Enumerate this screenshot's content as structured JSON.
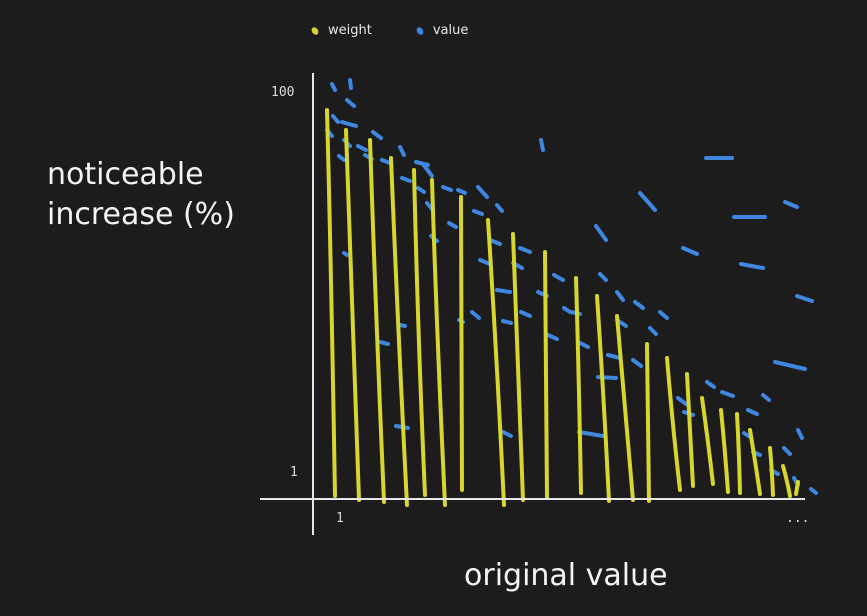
{
  "legend": [
    {
      "label": "weight",
      "color": "#d6d62e"
    },
    {
      "label": "value",
      "color": "#3f86e0"
    }
  ],
  "colors": {
    "weight": "#d6d62e",
    "value": "#3f86e0",
    "axis": "#e6e6e6",
    "background": "#1c1c1c"
  },
  "chart_data": {
    "type": "line",
    "xlabel": "original value",
    "ylabel_lines": [
      "noticeable",
      "increase (%)"
    ],
    "y_tick_labels": [
      "100",
      "1"
    ],
    "x_tick_labels": [
      "1",
      "..."
    ],
    "legend_position": "top",
    "grid": false,
    "weight_strokes": [
      [
        [
          327,
          110
        ],
        [
          331,
          260
        ],
        [
          335,
          496
        ]
      ],
      [
        [
          346,
          130
        ],
        [
          352,
          300
        ],
        [
          359,
          500
        ]
      ],
      [
        [
          370,
          140
        ],
        [
          376,
          320
        ],
        [
          384,
          502
        ]
      ],
      [
        [
          391,
          158
        ],
        [
          398,
          330
        ],
        [
          407,
          505
        ]
      ],
      [
        [
          414,
          170
        ],
        [
          418,
          340
        ],
        [
          425,
          495
        ]
      ],
      [
        [
          432,
          180
        ],
        [
          437,
          340
        ],
        [
          445,
          505
        ]
      ],
      [
        [
          461,
          197
        ],
        [
          462,
          330
        ],
        [
          462,
          490
        ]
      ],
      [
        [
          488,
          220
        ],
        [
          497,
          360
        ],
        [
          504,
          505
        ]
      ],
      [
        [
          513,
          234
        ],
        [
          518,
          360
        ],
        [
          523,
          500
        ]
      ],
      [
        [
          545,
          252
        ],
        [
          546,
          380
        ],
        [
          547,
          498
        ]
      ],
      [
        [
          576,
          278
        ],
        [
          579,
          380
        ],
        [
          581,
          493
        ]
      ],
      [
        [
          597,
          296
        ],
        [
          604,
          400
        ],
        [
          609,
          501
        ]
      ],
      [
        [
          617,
          316
        ],
        [
          625,
          410
        ],
        [
          633,
          500
        ]
      ],
      [
        [
          647,
          344
        ],
        [
          648,
          420
        ],
        [
          649,
          501
        ]
      ],
      [
        [
          667,
          358
        ],
        [
          673,
          430
        ],
        [
          680,
          490
        ]
      ],
      [
        [
          687,
          374
        ],
        [
          690,
          430
        ],
        [
          693,
          486
        ]
      ],
      [
        [
          702,
          398
        ],
        [
          708,
          440
        ],
        [
          713,
          484
        ]
      ],
      [
        [
          721,
          410
        ],
        [
          725,
          450
        ],
        [
          728,
          492
        ]
      ],
      [
        [
          737,
          414
        ],
        [
          739,
          450
        ],
        [
          740,
          493
        ]
      ],
      [
        [
          750,
          430
        ],
        [
          755,
          460
        ],
        [
          760,
          494
        ]
      ],
      [
        [
          770,
          448
        ],
        [
          772,
          470
        ],
        [
          773,
          495
        ]
      ],
      [
        [
          783,
          466
        ],
        [
          787,
          480
        ],
        [
          790,
          496
        ]
      ],
      [
        [
          798,
          482
        ],
        [
          797,
          488
        ],
        [
          796,
          494
        ]
      ]
    ],
    "value_dashes": [
      [
        [
          332,
          84
        ],
        [
          335,
          90
        ]
      ],
      [
        [
          350,
          80
        ],
        [
          351,
          88
        ]
      ],
      [
        [
          347,
          100
        ],
        [
          354,
          106
        ]
      ],
      [
        [
          333,
          116
        ],
        [
          338,
          122
        ]
      ],
      [
        [
          327,
          130
        ],
        [
          332,
          136
        ]
      ],
      [
        [
          342,
          122
        ],
        [
          356,
          126
        ]
      ],
      [
        [
          344,
          140
        ],
        [
          350,
          146
        ]
      ],
      [
        [
          358,
          146
        ],
        [
          366,
          150
        ]
      ],
      [
        [
          339,
          156
        ],
        [
          344,
          160
        ]
      ],
      [
        [
          373,
          132
        ],
        [
          381,
          138
        ]
      ],
      [
        [
          365,
          155
        ],
        [
          372,
          159
        ]
      ],
      [
        [
          382,
          160
        ],
        [
          390,
          163
        ]
      ],
      [
        [
          400,
          147
        ],
        [
          404,
          155
        ]
      ],
      [
        [
          416,
          162
        ],
        [
          428,
          165
        ]
      ],
      [
        [
          423,
          164
        ],
        [
          432,
          176
        ]
      ],
      [
        [
          402,
          178
        ],
        [
          410,
          181
        ]
      ],
      [
        [
          418,
          188
        ],
        [
          424,
          192
        ]
      ],
      [
        [
          427,
          203
        ],
        [
          432,
          209
        ]
      ],
      [
        [
          443,
          187
        ],
        [
          451,
          190
        ]
      ],
      [
        [
          458,
          190
        ],
        [
          465,
          193
        ]
      ],
      [
        [
          478,
          187
        ],
        [
          487,
          197
        ]
      ],
      [
        [
          497,
          205
        ],
        [
          502,
          211
        ]
      ],
      [
        [
          474,
          211
        ],
        [
          482,
          214
        ]
      ],
      [
        [
          449,
          223
        ],
        [
          456,
          227
        ]
      ],
      [
        [
          431,
          236
        ],
        [
          437,
          241
        ]
      ],
      [
        [
          490,
          240
        ],
        [
          500,
          244
        ]
      ],
      [
        [
          520,
          248
        ],
        [
          530,
          252
        ]
      ],
      [
        [
          480,
          260
        ],
        [
          490,
          264
        ]
      ],
      [
        [
          513,
          263
        ],
        [
          522,
          268
        ]
      ],
      [
        [
          497,
          290
        ],
        [
          510,
          292
        ]
      ],
      [
        [
          472,
          312
        ],
        [
          479,
          318
        ]
      ],
      [
        [
          521,
          312
        ],
        [
          530,
          316
        ]
      ],
      [
        [
          503,
          321
        ],
        [
          511,
          323
        ]
      ],
      [
        [
          538,
          292
        ],
        [
          547,
          296
        ]
      ],
      [
        [
          554,
          275
        ],
        [
          563,
          280
        ]
      ],
      [
        [
          571,
          312
        ],
        [
          580,
          314
        ]
      ],
      [
        [
          548,
          335
        ],
        [
          557,
          339
        ]
      ],
      [
        [
          578,
          342
        ],
        [
          588,
          347
        ]
      ],
      [
        [
          564,
          308
        ],
        [
          570,
          312
        ]
      ],
      [
        [
          600,
          274
        ],
        [
          606,
          280
        ]
      ],
      [
        [
          617,
          292
        ],
        [
          623,
          300
        ]
      ],
      [
        [
          635,
          302
        ],
        [
          643,
          308
        ]
      ],
      [
        [
          617,
          320
        ],
        [
          626,
          326
        ]
      ],
      [
        [
          608,
          355
        ],
        [
          620,
          358
        ]
      ],
      [
        [
          598,
          377
        ],
        [
          616,
          378
        ]
      ],
      [
        [
          633,
          360
        ],
        [
          641,
          366
        ]
      ],
      [
        [
          650,
          328
        ],
        [
          656,
          334
        ]
      ],
      [
        [
          660,
          312
        ],
        [
          667,
          318
        ]
      ],
      [
        [
          541,
          140
        ],
        [
          543,
          150
        ]
      ],
      [
        [
          596,
          226
        ],
        [
          606,
          240
        ]
      ],
      [
        [
          640,
          193
        ],
        [
          655,
          210
        ]
      ],
      [
        [
          683,
          248
        ],
        [
          697,
          254
        ]
      ],
      [
        [
          706,
          158
        ],
        [
          732,
          158
        ]
      ],
      [
        [
          734,
          217
        ],
        [
          765,
          217
        ]
      ],
      [
        [
          741,
          264
        ],
        [
          763,
          268
        ]
      ],
      [
        [
          785,
          202
        ],
        [
          797,
          207
        ]
      ],
      [
        [
          797,
          296
        ],
        [
          812,
          301
        ]
      ],
      [
        [
          775,
          362
        ],
        [
          805,
          369
        ]
      ],
      [
        [
          763,
          395
        ],
        [
          769,
          400
        ]
      ],
      [
        [
          678,
          398
        ],
        [
          686,
          404
        ]
      ],
      [
        [
          707,
          382
        ],
        [
          714,
          387
        ]
      ],
      [
        [
          722,
          392
        ],
        [
          733,
          396
        ]
      ],
      [
        [
          684,
          412
        ],
        [
          693,
          415
        ]
      ],
      [
        [
          748,
          410
        ],
        [
          757,
          414
        ]
      ],
      [
        [
          744,
          433
        ],
        [
          750,
          437
        ]
      ],
      [
        [
          753,
          452
        ],
        [
          760,
          455
        ]
      ],
      [
        [
          784,
          448
        ],
        [
          790,
          454
        ]
      ],
      [
        [
          798,
          430
        ],
        [
          802,
          438
        ]
      ],
      [
        [
          771,
          470
        ],
        [
          778,
          474
        ]
      ],
      [
        [
          794,
          478
        ],
        [
          798,
          485
        ]
      ],
      [
        [
          811,
          489
        ],
        [
          816,
          493
        ]
      ],
      [
        [
          579,
          432
        ],
        [
          603,
          436
        ]
      ],
      [
        [
          503,
          432
        ],
        [
          511,
          436
        ]
      ],
      [
        [
          396,
          426
        ],
        [
          408,
          428
        ]
      ],
      [
        [
          344,
          253
        ],
        [
          347,
          255
        ]
      ],
      [
        [
          380,
          342
        ],
        [
          388,
          344
        ]
      ],
      [
        [
          459,
          320
        ],
        [
          463,
          322
        ]
      ],
      [
        [
          400,
          325
        ],
        [
          405,
          326
        ]
      ]
    ]
  }
}
